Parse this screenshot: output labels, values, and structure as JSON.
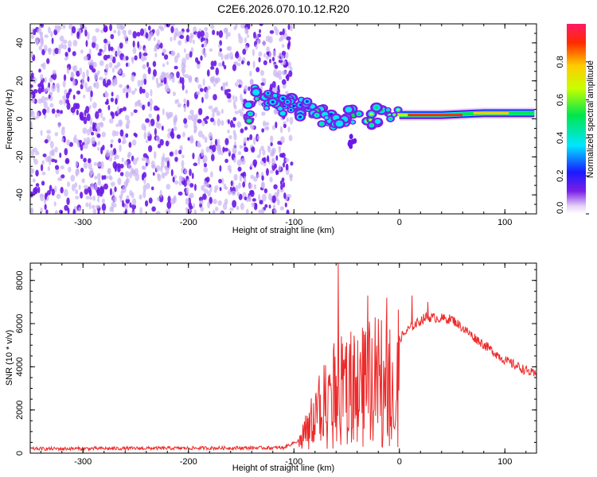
{
  "title": "C2E6.2026.070.10.12.R20",
  "colors": {
    "snr_line": "#ee2a2a",
    "blob_main": "#6a18e6",
    "blob_light": "#c9b4f2",
    "axis": "#000000"
  },
  "chart_data": [
    {
      "type": "heatmap",
      "title": "C2E6.2026.070.10.12.R20",
      "xlabel": "Height of straight line (km)",
      "ylabel": "Frequency (Hz)",
      "xlim": [
        -350,
        130
      ],
      "ylim": [
        -50,
        50
      ],
      "xticks": [
        -300,
        -200,
        -100,
        0,
        100
      ],
      "yticks": [
        -40,
        -20,
        0,
        20,
        40
      ],
      "noise_region_x": [
        -350,
        -110
      ],
      "ridge": [
        {
          "x": -140,
          "y": 12,
          "v": 0.45
        },
        {
          "x": -120,
          "y": 9,
          "v": 0.4
        },
        {
          "x": -95,
          "y": 6,
          "v": 0.35
        },
        {
          "x": -80,
          "y": 3,
          "v": 0.55
        },
        {
          "x": -60,
          "y": 0,
          "v": 0.5
        },
        {
          "x": -40,
          "y": 1,
          "v": 0.6
        },
        {
          "x": -20,
          "y": 1,
          "v": 0.7
        },
        {
          "x": 0,
          "y": 2,
          "v": 0.85
        },
        {
          "x": 40,
          "y": 2,
          "v": 0.9
        },
        {
          "x": 80,
          "y": 3,
          "v": 0.85
        },
        {
          "x": 130,
          "y": 3,
          "v": 0.6
        }
      ],
      "colorbar": {
        "label": "Normalized spectral amplitude",
        "range": [
          0,
          1
        ],
        "ticks": [
          "0.0",
          "0.2",
          "0.4",
          "0.6",
          "0.8"
        ]
      }
    },
    {
      "type": "line",
      "xlabel": "Height of straight line (km)",
      "ylabel": "SNR (10 * v/v)",
      "xlim": [
        -350,
        130
      ],
      "ylim": [
        0,
        8800
      ],
      "xticks": [
        -300,
        -200,
        -100,
        0,
        100
      ],
      "yticks": [
        0,
        2000,
        4000,
        6000,
        8000
      ],
      "envelope": [
        {
          "x": -350,
          "y": 200
        },
        {
          "x": -110,
          "y": 250
        },
        {
          "x": -95,
          "y": 600
        },
        {
          "x": -80,
          "y": 2500
        },
        {
          "x": -65,
          "y": 3800
        },
        {
          "x": -55,
          "y": 4200
        },
        {
          "x": -40,
          "y": 4500
        },
        {
          "x": -25,
          "y": 4800
        },
        {
          "x": -15,
          "y": 5000
        },
        {
          "x": 0,
          "y": 5300
        },
        {
          "x": 10,
          "y": 5800
        },
        {
          "x": 25,
          "y": 6300
        },
        {
          "x": 50,
          "y": 6200
        },
        {
          "x": 70,
          "y": 5400
        },
        {
          "x": 100,
          "y": 4300
        },
        {
          "x": 130,
          "y": 3600
        }
      ],
      "spikes": [
        {
          "x": -58,
          "y": 8800
        },
        {
          "x": -30,
          "y": 7300
        },
        {
          "x": -12,
          "y": 7200
        },
        {
          "x": 12,
          "y": 7300
        },
        {
          "x": 27,
          "y": 7000
        }
      ]
    }
  ]
}
